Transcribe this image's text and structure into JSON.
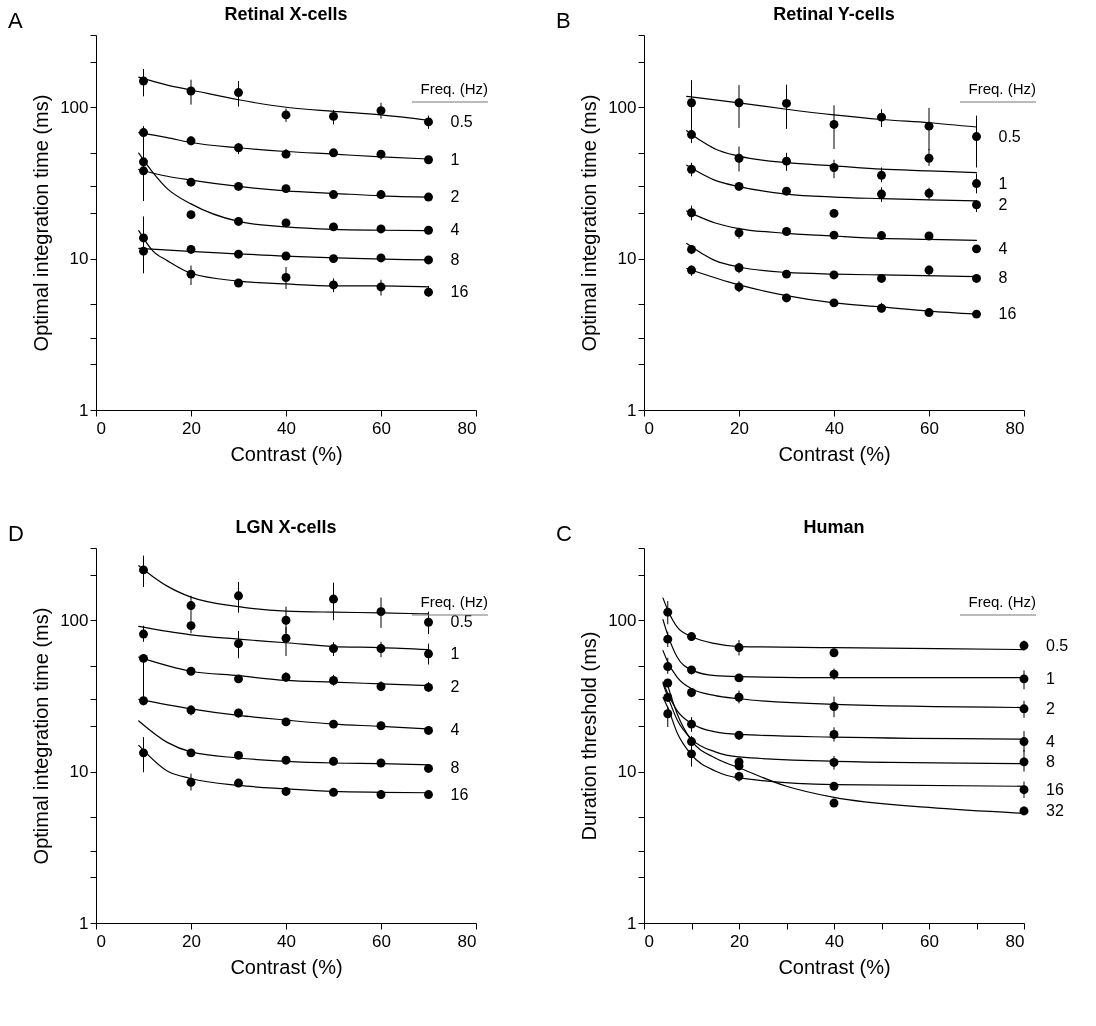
{
  "chart_data": [
    {
      "type": "scatter",
      "title": "Retinal X-cells",
      "xlabel": "Contrast (%)",
      "ylabel": "Optimal integration time (ms)",
      "legend_title": "Freq. (Hz)",
      "legend": "right",
      "annotations": [
        "A"
      ],
      "log": true,
      "xlim": [
        0,
        80
      ],
      "xticks": [
        0,
        20,
        40,
        60,
        80
      ],
      "ylim": [
        1,
        300
      ],
      "yticks": [
        1,
        {
          "value": 2,
          "label": null
        },
        {
          "value": 3,
          "label": null
        },
        {
          "value": 5,
          "label": null
        },
        10,
        {
          "value": 20,
          "label": null
        },
        {
          "value": 30,
          "label": null
        },
        {
          "value": 50,
          "label": null
        },
        100,
        {
          "value": 200,
          "label": null
        },
        {
          "value": 300,
          "label": null
        }
      ],
      "series": [
        {
          "name": "0.5",
          "color": "#000000",
          "marker": "circle",
          "x": [
            10,
            20,
            30,
            40,
            50,
            60,
            70
          ],
          "values": [
            149,
            128,
            125,
            89,
            87,
            95,
            80
          ],
          "errors": [
            [
              118,
              179
            ],
            [
              104,
              152
            ],
            [
              101,
              149
            ],
            [
              80,
              98
            ],
            [
              77,
              96
            ],
            [
              84,
              107
            ],
            [
              72,
              88
            ]
          ]
        },
        {
          "type": "line",
          "color": "#000000",
          "x": [
            9,
            15,
            20,
            30,
            40,
            50,
            60,
            70
          ],
          "values": [
            158,
            140,
            130,
            112,
            100,
            94,
            89,
            82
          ]
        },
        {
          "name": "1",
          "color": "#000000",
          "marker": "circle",
          "x": [
            10,
            20,
            30,
            40,
            50,
            60,
            70
          ],
          "values": [
            68,
            60,
            54,
            49,
            50,
            49,
            45
          ],
          "errors": [
            [
              62,
              75
            ],
            [
              56,
              64
            ],
            [
              49,
              58
            ],
            [
              46,
              53
            ],
            [
              47,
              53
            ],
            [
              45,
              52
            ],
            null
          ]
        },
        {
          "type": "line",
          "color": "#000000",
          "x": [
            9,
            15,
            20,
            30,
            40,
            50,
            60,
            70
          ],
          "values": [
            68,
            63,
            58.5,
            54,
            51,
            49,
            47,
            45.5
          ]
        },
        {
          "name": "2",
          "color": "#000000",
          "marker": "circle",
          "x": [
            10,
            20,
            30,
            40,
            50,
            60,
            70
          ],
          "values": [
            38,
            32,
            30,
            29,
            26.5,
            26.5,
            25.5
          ],
          "errors": [
            null,
            [
              30,
              34
            ],
            [
              28,
              31.5
            ],
            null,
            null,
            null,
            null
          ]
        },
        {
          "type": "line",
          "color": "#000000",
          "x": [
            9,
            15,
            20,
            30,
            40,
            50,
            60,
            70
          ],
          "values": [
            38.8,
            35,
            33,
            30,
            28,
            27,
            26,
            25.5
          ]
        },
        {
          "name": "4",
          "color": "#000000",
          "marker": "circle",
          "x": [
            10,
            20,
            30,
            40,
            50,
            60,
            70
          ],
          "values": [
            43.6,
            19.5,
            17.6,
            17.2,
            16.2,
            15.7,
            15.4
          ],
          "errors": [
            [
              24,
              74
            ],
            null,
            null,
            null,
            null,
            null,
            null
          ]
        },
        {
          "type": "line",
          "color": "#000000",
          "x": [
            9,
            12,
            15,
            20,
            30,
            40,
            50,
            60,
            70
          ],
          "values": [
            49.8,
            37,
            29,
            23,
            17.6,
            16.2,
            15.6,
            15.4,
            15.3
          ]
        },
        {
          "name": "8",
          "color": "#000000",
          "marker": "circle",
          "x": [
            10,
            20,
            30,
            40,
            50,
            60,
            70
          ],
          "values": [
            11.2,
            11.5,
            10.7,
            10.4,
            10.0,
            10.1,
            9.8
          ]
        },
        {
          "type": "line",
          "color": "#000000",
          "x": [
            9,
            40,
            70
          ],
          "values": [
            11.7,
            10.4,
            9.8
          ]
        },
        {
          "name": "16",
          "color": "#000000",
          "marker": "circle",
          "x": [
            10,
            20,
            30,
            40,
            50,
            60,
            70
          ],
          "values": [
            13.7,
            7.9,
            6.9,
            7.5,
            6.7,
            6.5,
            6.0
          ],
          "errors": [
            [
              8,
              19
            ],
            [
              6.7,
              9.0
            ],
            null,
            [
              6.3,
              8.8
            ],
            [
              6.0,
              7.4
            ],
            [
              5.7,
              7.25
            ],
            [
              5.6,
              6.6
            ]
          ]
        },
        {
          "type": "line",
          "color": "#000000",
          "x": [
            9,
            12,
            15,
            20,
            30,
            40,
            50,
            60,
            70
          ],
          "values": [
            15.3,
            11.2,
            9.7,
            8.0,
            7.1,
            6.8,
            6.6,
            6.6,
            6.5
          ]
        }
      ]
    },
    {
      "type": "scatter",
      "title": "Retinal Y-cells",
      "xlabel": "Contrast (%)",
      "ylabel": "Optimal integration time (ms)",
      "legend_title": "Freq. (Hz)",
      "legend": "right",
      "annotations": [
        "B"
      ],
      "log": true,
      "xlim": [
        0,
        80
      ],
      "xticks": [
        0,
        20,
        40,
        60,
        80
      ],
      "ylim": [
        1,
        300
      ],
      "yticks": [
        1,
        {
          "value": 2,
          "label": null
        },
        {
          "value": 3,
          "label": null
        },
        {
          "value": 5,
          "label": null
        },
        10,
        {
          "value": 20,
          "label": null
        },
        {
          "value": 30,
          "label": null
        },
        {
          "value": 50,
          "label": null
        },
        100,
        {
          "value": 200,
          "label": null
        },
        {
          "value": 300,
          "label": null
        }
      ],
      "series": [
        {
          "name": "0.5",
          "color": "#000000",
          "marker": "circle",
          "x": [
            10,
            20,
            30,
            40,
            50,
            60,
            70
          ],
          "values": [
            107,
            107,
            106,
            77,
            86,
            75,
            64
          ],
          "errors": [
            [
              72,
              151
            ],
            [
              73,
              140
            ],
            [
              72,
              141
            ],
            [
              53,
              103
            ],
            [
              74,
              97
            ],
            [
              52,
              99
            ],
            [
              40,
              88
            ]
          ]
        },
        {
          "type": "line",
          "color": "#000000",
          "x": [
            9,
            20,
            30,
            40,
            50,
            60,
            70
          ],
          "values": [
            118,
            107,
            97,
            89,
            83,
            79,
            74
          ]
        },
        {
          "name": "1",
          "color": "#000000",
          "marker": "circle",
          "x": [
            10,
            20,
            30,
            40,
            50,
            60,
            70
          ],
          "values": [
            66,
            46,
            44,
            40,
            35.5,
            46,
            31.3
          ],
          "errors": [
            [
              58,
              72
            ],
            [
              37.6,
              55
            ],
            [
              38,
              50
            ],
            [
              34,
              45
            ],
            [
              32,
              40
            ],
            [
              41,
              53
            ],
            [
              27,
              36.5
            ]
          ]
        },
        {
          "type": "line",
          "color": "#000000",
          "x": [
            9,
            12,
            15,
            20,
            30,
            40,
            50,
            60,
            70
          ],
          "values": [
            70,
            60,
            53,
            47.5,
            43,
            41,
            39,
            38,
            37
          ]
        },
        {
          "name": "2",
          "color": "#000000",
          "marker": "circle",
          "x": [
            10,
            20,
            30,
            40,
            50,
            60,
            70
          ],
          "values": [
            38.9,
            30,
            27.9,
            19.9,
            26.7,
            27,
            22.7
          ],
          "errors": [
            [
              35,
              43
            ],
            [
              28,
              32
            ],
            null,
            [
              19,
              21
            ],
            [
              23.7,
              29.6
            ],
            [
              24.6,
              29.4
            ],
            [
              20.3,
              24.3
            ]
          ]
        },
        {
          "type": "line",
          "color": "#000000",
          "x": [
            9,
            15,
            20,
            30,
            40,
            50,
            60,
            70
          ],
          "values": [
            41.4,
            32.9,
            29.9,
            26.7,
            25.5,
            24.9,
            24.4,
            24.1
          ]
        },
        {
          "name": "4",
          "color": "#000000",
          "marker": "circle",
          "x": [
            10,
            20,
            30,
            40,
            50,
            60,
            70
          ],
          "values": [
            20.1,
            14.8,
            15.1,
            14.3,
            14.2,
            14.1,
            11.6
          ],
          "errors": [
            [
              17.9,
              22.4
            ],
            [
              13.5,
              16
            ],
            null,
            null,
            null,
            null,
            null
          ]
        },
        {
          "type": "line",
          "color": "#000000",
          "x": [
            9,
            15,
            20,
            30,
            40,
            50,
            60,
            70
          ],
          "values": [
            20.6,
            17.2,
            15.8,
            14.7,
            14.1,
            13.6,
            13.4,
            13.2
          ]
        },
        {
          "name": "8",
          "color": "#000000",
          "marker": "circle",
          "x": [
            10,
            20,
            30,
            40,
            50,
            60,
            70
          ],
          "values": [
            11.5,
            8.7,
            7.9,
            7.8,
            7.4,
            8.4,
            7.4
          ],
          "errors": [
            [
              10.7,
              12.1
            ],
            [
              8.0,
              9.4
            ],
            null,
            null,
            null,
            [
              7.7,
              9.0
            ],
            [
              7.0,
              7.9
            ]
          ]
        },
        {
          "type": "line",
          "color": "#000000",
          "x": [
            9,
            15,
            20,
            30,
            40,
            50,
            70
          ],
          "values": [
            12.6,
            9.7,
            8.8,
            8.1,
            7.9,
            7.8,
            7.6
          ]
        },
        {
          "name": "16",
          "color": "#000000",
          "marker": "circle",
          "x": [
            10,
            20,
            30,
            40,
            50,
            60,
            70
          ],
          "values": [
            8.4,
            6.5,
            5.5,
            5.1,
            4.7,
            4.4,
            4.3
          ],
          "errors": [
            [
              7.7,
              9.0
            ],
            [
              6.0,
              7.1
            ],
            [
              5.2,
              5.8
            ],
            null,
            [
              4.4,
              5.1
            ],
            null,
            null
          ]
        },
        {
          "type": "line",
          "color": "#000000",
          "x": [
            9,
            20,
            30,
            40,
            50,
            60,
            70
          ],
          "values": [
            8.6,
            6.7,
            5.7,
            5.1,
            4.8,
            4.5,
            4.3
          ]
        }
      ]
    },
    {
      "type": "scatter",
      "title": "LGN X-cells",
      "xlabel": "Contrast (%)",
      "ylabel": "Optimal integration time (ms)",
      "legend_title": "Freq. (Hz)",
      "legend": "right",
      "annotations": [
        "D"
      ],
      "log": true,
      "xlim": [
        0,
        80
      ],
      "xticks": [
        0,
        20,
        40,
        60,
        80
      ],
      "ylim": [
        1,
        300
      ],
      "yticks": [
        1,
        {
          "value": 2,
          "label": null
        },
        {
          "value": 3,
          "label": null
        },
        {
          "value": 5,
          "label": null
        },
        10,
        {
          "value": 20,
          "label": null
        },
        {
          "value": 30,
          "label": null
        },
        {
          "value": 50,
          "label": null
        },
        100,
        {
          "value": 200,
          "label": null
        },
        {
          "value": 300,
          "label": null
        }
      ],
      "series": [
        {
          "name": "0.5",
          "color": "#000000",
          "marker": "circle",
          "x": [
            10,
            20,
            30,
            40,
            50,
            60,
            70
          ],
          "values": [
            215,
            125,
            145,
            100,
            138,
            114,
            97
          ],
          "errors": [
            [
              166,
              267
            ],
            [
              100,
              145
            ],
            [
              112,
              179
            ],
            [
              82,
              123
            ],
            [
              100,
              177
            ],
            [
              89,
              141
            ],
            [
              81,
              114
            ]
          ]
        },
        {
          "type": "line",
          "color": "#000000",
          "x": [
            9,
            12,
            15,
            20,
            30,
            40,
            50,
            60,
            70
          ],
          "values": [
            229,
            194,
            168,
            142,
            123,
            115,
            113,
            112,
            110
          ]
        },
        {
          "name": "1",
          "color": "#000000",
          "marker": "circle",
          "x": [
            10,
            20,
            30,
            40,
            50,
            60,
            70
          ],
          "values": [
            81,
            92,
            70,
            76,
            65,
            65,
            60
          ],
          "errors": [
            [
              72,
              92
            ],
            [
              82,
              100
            ],
            [
              56,
              85
            ],
            [
              58,
              90
            ],
            [
              58,
              71.5
            ],
            [
              57,
              72
            ],
            [
              51,
              70
            ]
          ]
        },
        {
          "type": "line",
          "color": "#000000",
          "x": [
            9,
            20,
            30,
            40,
            50,
            60,
            70
          ],
          "values": [
            91,
            80,
            75,
            71,
            67,
            66,
            64
          ]
        },
        {
          "name": "2",
          "color": "#000000",
          "marker": "circle",
          "x": [
            10,
            20,
            30,
            40,
            50,
            60,
            70
          ],
          "values": [
            56,
            46,
            41,
            42,
            40,
            36.5,
            36
          ],
          "errors": [
            [
              30,
              58
            ],
            [
              43.6,
              48
            ],
            [
              39,
              43
            ],
            [
              39.2,
              45.5
            ],
            [
              37,
              43.6
            ],
            [
              34,
              39.5
            ],
            [
              33.7,
              39
            ]
          ]
        },
        {
          "type": "line",
          "color": "#000000",
          "x": [
            9,
            20,
            30,
            40,
            50,
            60,
            70
          ],
          "values": [
            57,
            46,
            43,
            40,
            39,
            38,
            37
          ]
        },
        {
          "name": "4",
          "color": "#000000",
          "marker": "circle",
          "x": [
            10,
            20,
            30,
            40,
            50,
            60,
            70
          ],
          "values": [
            29.4,
            25.5,
            24.4,
            21.3,
            20.6,
            20.1,
            18.7
          ],
          "errors": [
            [
              27.4,
              31.6
            ],
            [
              23.5,
              27.4
            ],
            [
              22.7,
              26
            ],
            null,
            null,
            null,
            null
          ]
        },
        {
          "type": "line",
          "color": "#000000",
          "x": [
            9,
            20,
            30,
            40,
            50,
            60,
            70
          ],
          "values": [
            30,
            26,
            23.5,
            21.9,
            20.6,
            19.9,
            19.1
          ]
        },
        {
          "name": "8",
          "color": "#000000",
          "marker": "circle",
          "x": [
            20,
            30,
            40,
            50,
            60,
            70
          ],
          "values": [
            13.3,
            12.8,
            11.9,
            11.7,
            11.4,
            10.5
          ]
        },
        {
          "type": "line",
          "color": "#000000",
          "x": [
            9,
            15,
            20,
            30,
            40,
            50,
            60,
            70
          ],
          "values": [
            21.6,
            15.6,
            13.5,
            12.3,
            11.7,
            11.4,
            11.3,
            11.1
          ]
        },
        {
          "name": "16",
          "color": "#000000",
          "marker": "circle",
          "x": [
            10,
            20,
            30,
            40,
            50,
            60,
            70
          ],
          "values": [
            13.3,
            8.5,
            8.4,
            7.4,
            7.3,
            7.05,
            7.05
          ],
          "errors": [
            [
              9.9,
              16.9
            ],
            [
              7.5,
              9.7
            ],
            null,
            null,
            null,
            null,
            null
          ]
        },
        {
          "type": "line",
          "color": "#000000",
          "x": [
            9,
            15,
            20,
            30,
            40,
            50,
            60,
            70
          ],
          "values": [
            14.9,
            10.1,
            9.0,
            8.1,
            7.7,
            7.4,
            7.3,
            7.25
          ]
        }
      ]
    },
    {
      "type": "scatter",
      "title": "Human",
      "xlabel": "Contrast (%)",
      "ylabel": "Duration threshold (ms)",
      "legend_title": "Freq. (Hz)",
      "legend": "right",
      "annotations": [
        "C"
      ],
      "log": true,
      "xlim": [
        0,
        80
      ],
      "xticks": [
        0,
        {
          "value": 10,
          "label": null
        },
        20,
        {
          "value": 30,
          "label": null
        },
        40,
        {
          "value": 50,
          "label": null
        },
        60,
        {
          "value": 70,
          "label": null
        },
        80
      ],
      "ylim": [
        1,
        300
      ],
      "yticks": [
        1,
        {
          "value": 2,
          "label": null
        },
        {
          "value": 3,
          "label": null
        },
        {
          "value": 5,
          "label": null
        },
        10,
        {
          "value": 20,
          "label": null
        },
        {
          "value": 30,
          "label": null
        },
        {
          "value": 50,
          "label": null
        },
        100,
        {
          "value": 200,
          "label": null
        },
        {
          "value": 300,
          "label": null
        }
      ],
      "series": [
        {
          "name": "0.5",
          "color": "#000000",
          "marker": "circle",
          "x": [
            5,
            10,
            20,
            40,
            80
          ],
          "values": [
            113,
            78,
            66,
            61,
            68
          ],
          "errors": [
            [
              94,
              134
            ],
            [
              74.5,
              81
            ],
            [
              58.5,
              74
            ],
            [
              58,
              65
            ],
            [
              63,
              73.5
            ]
          ]
        },
        {
          "type": "line",
          "color": "#000000",
          "x": [
            4,
            5,
            7,
            10,
            15,
            20,
            40,
            80
          ],
          "values": [
            140,
            117,
            90,
            78,
            70,
            67,
            66,
            64
          ]
        },
        {
          "name": "1",
          "color": "#000000",
          "marker": "circle",
          "x": [
            5,
            10,
            20,
            40,
            80
          ],
          "values": [
            75,
            47,
            41.6,
            44,
            41
          ],
          "errors": [
            [
              66.5,
              84
            ],
            [
              43.8,
              49.5
            ],
            [
              40,
              43.3
            ],
            [
              40.4,
              48
            ],
            [
              35,
              46.6
            ]
          ]
        },
        {
          "type": "line",
          "color": "#000000",
          "x": [
            4,
            5,
            7,
            10,
            15,
            20,
            40,
            80
          ],
          "values": [
            101,
            80,
            57,
            47,
            43,
            42.4,
            41.8,
            41.8
          ]
        },
        {
          "name": "2",
          "color": "#000000",
          "marker": "circle",
          "x": [
            5,
            10,
            20,
            40,
            80
          ],
          "values": [
            49.4,
            33.3,
            31,
            26.9,
            26
          ],
          "errors": [
            [
              44.3,
              56.5
            ],
            [
              31,
              35.3
            ],
            [
              28.2,
              34.3
            ],
            [
              22.9,
              31.3
            ],
            [
              22.7,
              29.4
            ]
          ]
        },
        {
          "type": "line",
          "color": "#000000",
          "x": [
            4,
            5,
            7,
            10,
            15,
            20,
            40,
            80
          ],
          "values": [
            63,
            53,
            42,
            35.3,
            31.8,
            30.3,
            27.8,
            26.5
          ]
        },
        {
          "name": "4",
          "color": "#000000",
          "marker": "circle",
          "x": [
            5,
            10,
            20,
            40,
            80
          ],
          "values": [
            38.5,
            20.6,
            17.4,
            17.6,
            15.8
          ],
          "errors": [
            null,
            [
              18.3,
              22.9
            ],
            [
              16.2,
              18.5
            ],
            [
              15.8,
              19.6
            ],
            [
              13.5,
              18.5
            ]
          ]
        },
        {
          "type": "line",
          "color": "#000000",
          "x": [
            4,
            5,
            7,
            10,
            15,
            20,
            40,
            80
          ],
          "values": [
            39,
            32.9,
            25.2,
            20.8,
            18.3,
            17.6,
            16.9,
            16.4
          ]
        },
        {
          "name": "8",
          "color": "#000000",
          "marker": "circle",
          "x": [
            5,
            10,
            20,
            40,
            80
          ],
          "values": [
            30.9,
            15.8,
            11.6,
            11.5,
            11.6
          ],
          "errors": [
            null,
            [
              14.4,
              17.2
            ],
            null,
            [
              10.3,
              12.7
            ],
            [
              10.0,
              13.9
            ]
          ]
        },
        {
          "type": "line",
          "color": "#000000",
          "x": [
            4,
            5,
            7,
            10,
            15,
            20,
            40,
            80
          ],
          "values": [
            38,
            31.3,
            21.9,
            16.4,
            13.5,
            12.5,
            11.7,
            11.3
          ]
        },
        {
          "name": "16",
          "color": "#000000",
          "marker": "circle",
          "x": [
            5,
            10,
            20,
            40,
            80
          ],
          "values": [
            24.1,
            13.1,
            9.3,
            8.0,
            7.6
          ],
          "errors": [
            [
              19.7,
              26.8
            ],
            [
              10.8,
              14.7
            ],
            [
              8.6,
              10
            ],
            null,
            [
              6.7,
              8.6
            ]
          ]
        },
        {
          "type": "line",
          "color": "#000000",
          "x": [
            4,
            5,
            7,
            10,
            15,
            20,
            40,
            80
          ],
          "values": [
            30.9,
            26.5,
            18,
            12.9,
            10.1,
            9.1,
            8.2,
            8.0
          ]
        },
        {
          "name": "32",
          "color": "#000000",
          "marker": "circle",
          "x": [
            20,
            40,
            80
          ],
          "values": [
            10.9,
            6.2,
            5.5
          ],
          "errors": [
            null,
            null,
            [
              5.2,
              5.9
            ]
          ]
        },
        {
          "type": "line",
          "color": "#000000",
          "x": [
            5,
            7,
            10,
            15,
            20,
            30,
            40,
            60,
            80
          ],
          "values": [
            37,
            24,
            16,
            12.3,
            10.6,
            8,
            6.75,
            5.8,
            5.3
          ]
        }
      ]
    }
  ]
}
